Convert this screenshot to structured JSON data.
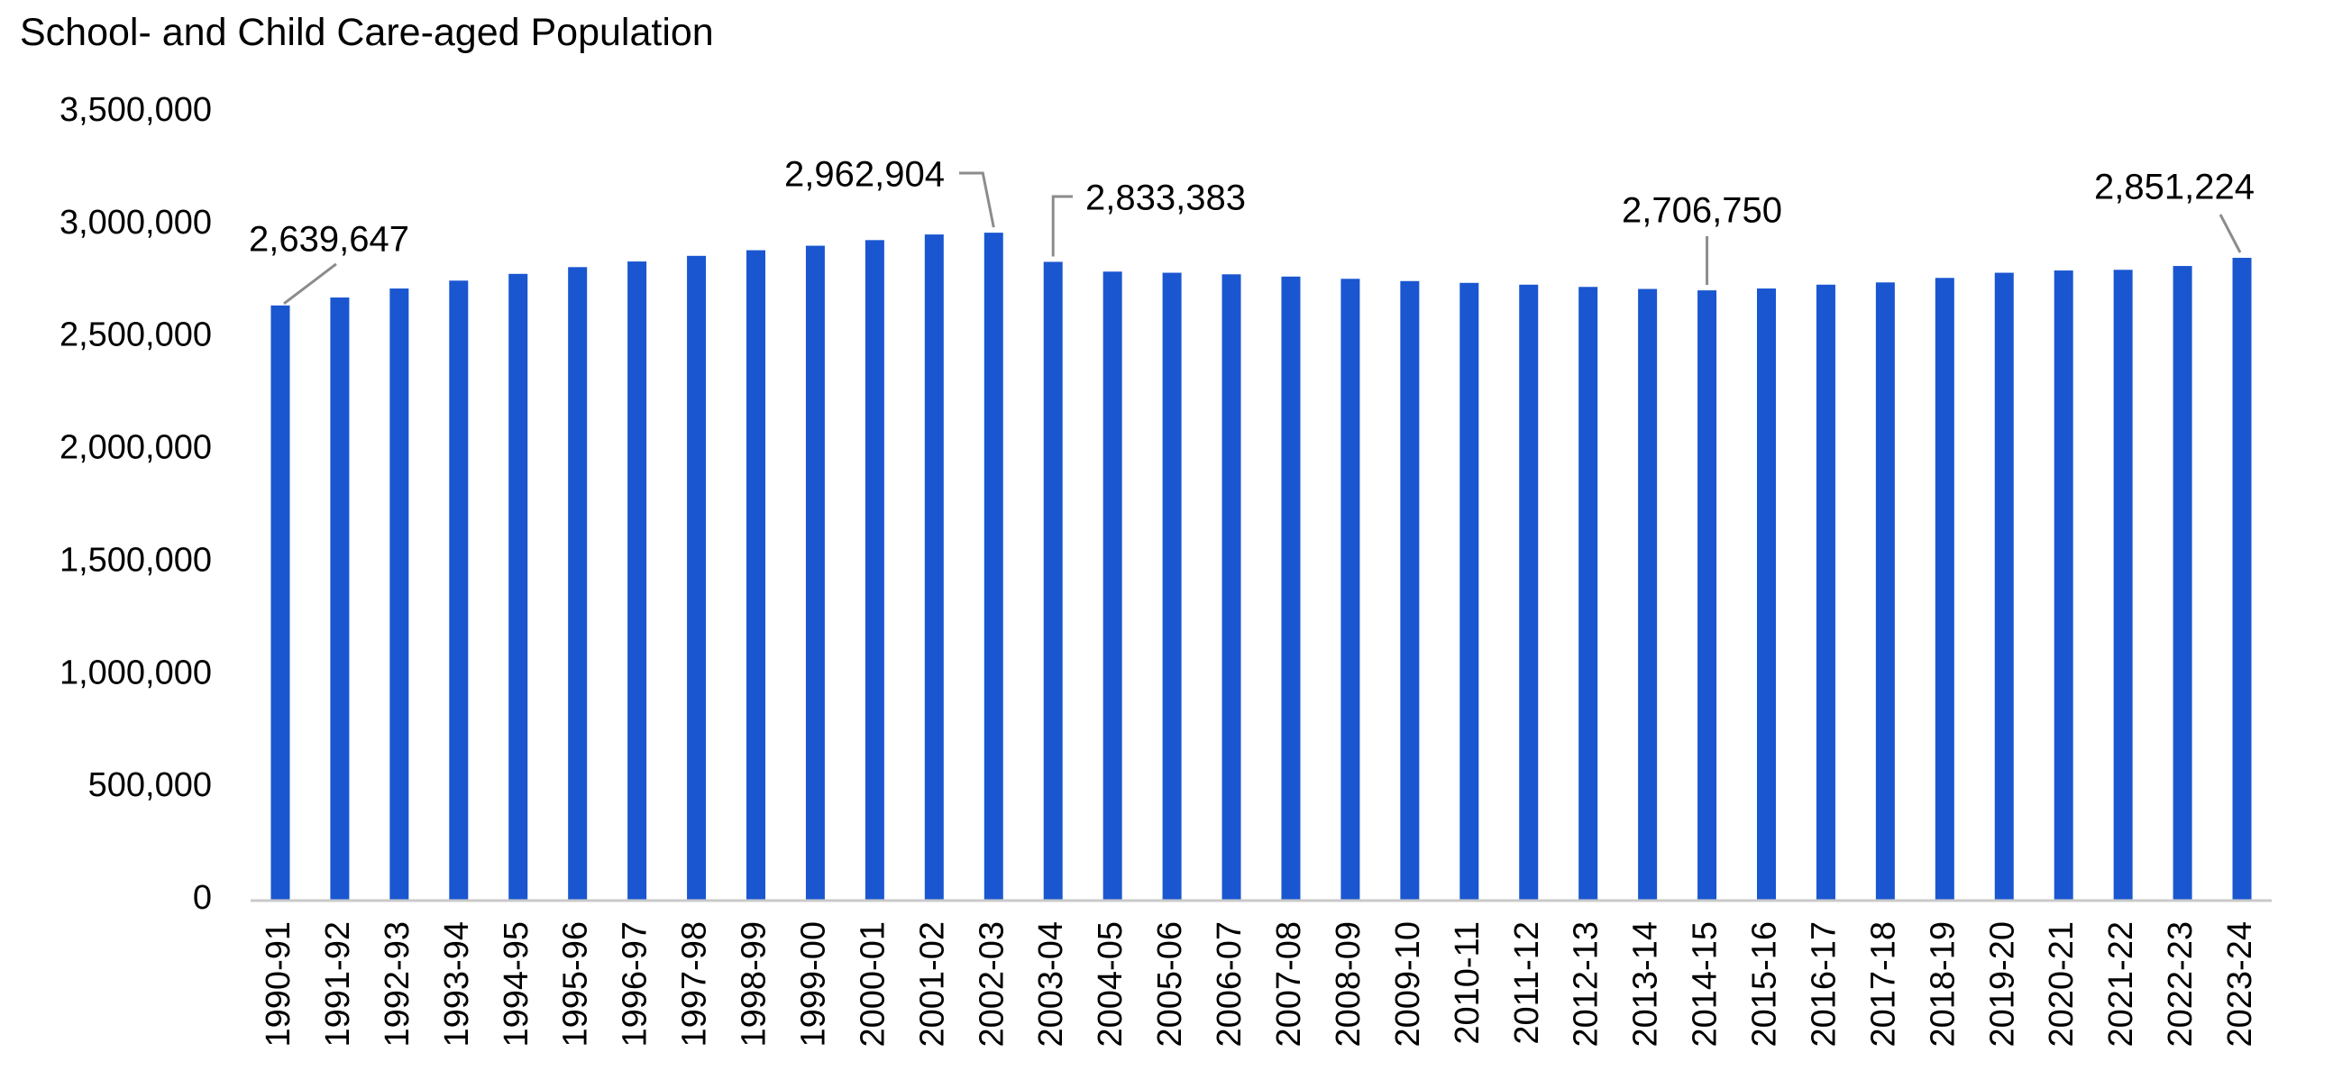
{
  "chart_data": {
    "type": "bar",
    "title": "School- and Child Care-aged Population",
    "xlabel": "",
    "ylabel": "",
    "ylim": [
      0,
      3500000
    ],
    "yticks": [
      0,
      500000,
      1000000,
      1500000,
      2000000,
      2500000,
      3000000,
      3500000
    ],
    "ytick_labels": [
      "0",
      "500,000",
      "1,000,000",
      "1,500,000",
      "2,000,000",
      "2,500,000",
      "3,000,000",
      "3,500,000"
    ],
    "grid": false,
    "legend": "none",
    "bar_color": "#1a56d0",
    "categories": [
      "1990-91",
      "1991-92",
      "1992-93",
      "1993-94",
      "1994-95",
      "1995-96",
      "1996-97",
      "1997-98",
      "1998-99",
      "1999-00",
      "2000-01",
      "2001-02",
      "2002-03",
      "2003-04",
      "2004-05",
      "2005-06",
      "2006-07",
      "2007-08",
      "2008-09",
      "2009-10",
      "2010-11",
      "2011-12",
      "2012-13",
      "2013-14",
      "2014-15",
      "2015-16",
      "2016-17",
      "2017-18",
      "2018-19",
      "2019-20",
      "2020-21",
      "2021-22",
      "2022-23",
      "2023-24"
    ],
    "values": [
      2639647,
      2675000,
      2715000,
      2750000,
      2780000,
      2810000,
      2835000,
      2860000,
      2885000,
      2905000,
      2930000,
      2955000,
      2962904,
      2833383,
      2790000,
      2785000,
      2778000,
      2768000,
      2758000,
      2748000,
      2740000,
      2732000,
      2722000,
      2713000,
      2706750,
      2715000,
      2732000,
      2742000,
      2762000,
      2785000,
      2795000,
      2798000,
      2815000,
      2851224
    ],
    "annotations": [
      {
        "index": 0,
        "text": "2,639,647"
      },
      {
        "index": 12,
        "text": "2,962,904"
      },
      {
        "index": 13,
        "text": "2,833,383"
      },
      {
        "index": 24,
        "text": "2,706,750"
      },
      {
        "index": 33,
        "text": "2,851,224"
      }
    ]
  }
}
